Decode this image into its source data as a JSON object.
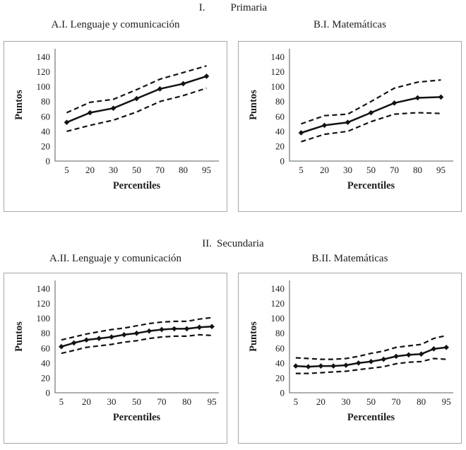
{
  "sections": [
    {
      "numeral": "I.",
      "title": "Primaria"
    },
    {
      "numeral": "II.",
      "title": "Secundaria"
    }
  ],
  "colors": {
    "line": "#131313",
    "axis": "#7b8084",
    "box_border": "#a3a8ab",
    "text": "#1d1d1d"
  },
  "chart_data": [
    {
      "id": "A.I",
      "type": "line",
      "title": "A.I. Lenguaje y comunicación",
      "xlabel": "Percentiles",
      "ylabel": "Puntos",
      "ylim": [
        0,
        150
      ],
      "yticks": [
        0,
        20,
        40,
        60,
        80,
        100,
        120,
        140
      ],
      "grid": false,
      "legend": "none",
      "categories": [
        5,
        20,
        30,
        50,
        70,
        80,
        95
      ],
      "x_tick_labels": [
        "5",
        "20",
        "30",
        "50",
        "70",
        "80",
        "95"
      ],
      "series": [
        {
          "name": "main",
          "style": "solid",
          "marker": "diamond",
          "values": [
            52,
            65,
            71,
            84,
            97,
            104,
            114
          ]
        },
        {
          "name": "upper-bound",
          "style": "dashed",
          "marker": "none",
          "values": [
            65,
            79,
            83,
            96,
            110,
            119,
            128
          ]
        },
        {
          "name": "lower-bound",
          "style": "dashed",
          "marker": "none",
          "values": [
            40,
            48,
            55,
            66,
            80,
            88,
            98
          ]
        }
      ]
    },
    {
      "id": "B.I",
      "type": "line",
      "title": "B.I. Matemáticas",
      "xlabel": "Percentiles",
      "ylabel": "Puntos",
      "ylim": [
        0,
        150
      ],
      "yticks": [
        0,
        20,
        40,
        60,
        80,
        100,
        120,
        140
      ],
      "grid": false,
      "legend": "none",
      "categories": [
        5,
        20,
        30,
        50,
        70,
        80,
        95
      ],
      "x_tick_labels": [
        "5",
        "20",
        "30",
        "50",
        "70",
        "80",
        "95"
      ],
      "series": [
        {
          "name": "main",
          "style": "solid",
          "marker": "diamond",
          "values": [
            38,
            48,
            52,
            65,
            78,
            85,
            86
          ]
        },
        {
          "name": "upper-bound",
          "style": "dashed",
          "marker": "none",
          "values": [
            50,
            61,
            63,
            80,
            98,
            106,
            109
          ]
        },
        {
          "name": "lower-bound",
          "style": "dashed",
          "marker": "none",
          "values": [
            26,
            36,
            40,
            53,
            63,
            65,
            64
          ]
        }
      ]
    },
    {
      "id": "A.II",
      "type": "line",
      "title": "A.II. Lenguaje y comunicación",
      "xlabel": "Percentiles",
      "ylabel": "Puntos",
      "ylim": [
        0,
        150
      ],
      "yticks": [
        0,
        20,
        40,
        60,
        80,
        100,
        120,
        140
      ],
      "grid": false,
      "legend": "none",
      "categories": [
        5,
        10,
        20,
        25,
        30,
        40,
        50,
        60,
        70,
        75,
        80,
        90,
        95
      ],
      "x_tick_labels": [
        "5",
        "",
        "20",
        "",
        "30",
        "",
        "50",
        "",
        "70",
        "",
        "80",
        "",
        "95"
      ],
      "series": [
        {
          "name": "main",
          "style": "solid",
          "marker": "diamond",
          "values": [
            62,
            67,
            71,
            73,
            75,
            78,
            80,
            83,
            85,
            86,
            86,
            88,
            89
          ]
        },
        {
          "name": "upper-bound",
          "style": "dashed",
          "marker": "none",
          "values": [
            71,
            75,
            79,
            82,
            85,
            87,
            90,
            93,
            95,
            96,
            96,
            99,
            101
          ]
        },
        {
          "name": "lower-bound",
          "style": "dashed",
          "marker": "none",
          "values": [
            53,
            57,
            61,
            63,
            65,
            68,
            70,
            73,
            75,
            76,
            76,
            78,
            77
          ]
        }
      ]
    },
    {
      "id": "B.II",
      "type": "line",
      "title": "B.II. Matemáticas",
      "xlabel": "Percentiles",
      "ylabel": "Puntos",
      "ylim": [
        0,
        150
      ],
      "yticks": [
        0,
        20,
        40,
        60,
        80,
        100,
        120,
        140
      ],
      "grid": false,
      "legend": "none",
      "categories": [
        5,
        10,
        20,
        25,
        30,
        40,
        50,
        60,
        70,
        75,
        80,
        90,
        95
      ],
      "x_tick_labels": [
        "5",
        "",
        "20",
        "",
        "30",
        "",
        "50",
        "",
        "70",
        "",
        "80",
        "",
        "95"
      ],
      "series": [
        {
          "name": "main",
          "style": "solid",
          "marker": "diamond",
          "values": [
            36,
            35,
            36,
            36,
            37,
            40,
            42,
            45,
            49,
            51,
            52,
            59,
            61
          ]
        },
        {
          "name": "upper-bound",
          "style": "dashed",
          "marker": "none",
          "values": [
            47,
            46,
            45,
            45,
            46,
            49,
            53,
            56,
            61,
            63,
            65,
            73,
            77
          ]
        },
        {
          "name": "lower-bound",
          "style": "dashed",
          "marker": "none",
          "values": [
            26,
            26,
            27,
            28,
            29,
            31,
            33,
            35,
            39,
            41,
            42,
            46,
            45
          ]
        }
      ]
    }
  ]
}
